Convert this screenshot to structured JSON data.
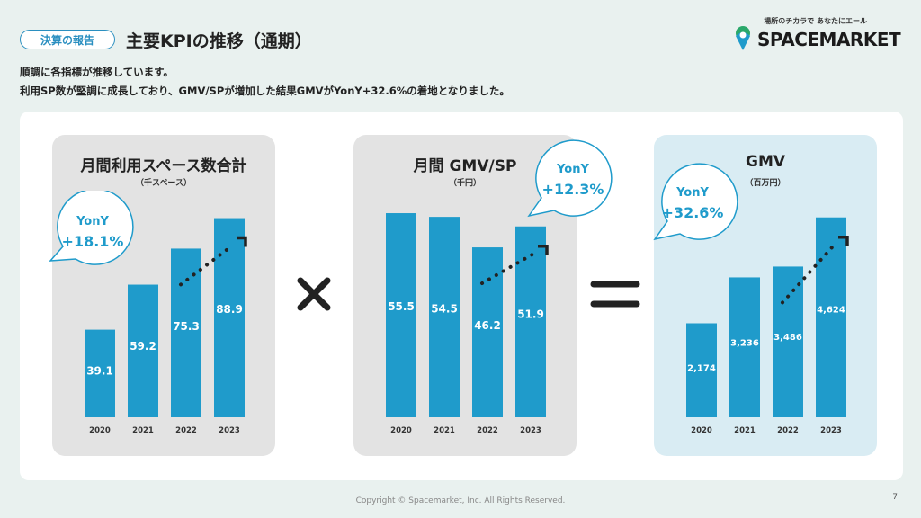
{
  "header": {
    "badge": "決算の報告",
    "title": "主要KPIの推移（通期）",
    "desc_line1": "順調に各指標が推移しています。",
    "desc_line2": "利用SP数が堅調に成長しており、GMV/SPが増加した結果GMVがYonY+32.6%の着地となりました。"
  },
  "logo": {
    "tagline": "場所のチカラで あなたにエール",
    "name": "SPACEMARKET",
    "icon": "spacemarket-logo-icon"
  },
  "operators": {
    "times": "×",
    "equals": "="
  },
  "colors": {
    "bar": "#1f9bcb",
    "accent": "#2a8fc0",
    "panel_gray": "#e3e3e3",
    "panel_blue": "#d9ecf3"
  },
  "chart_data": [
    {
      "type": "bar",
      "title": "月間利用スペース数合計",
      "unit": "（千スペース）",
      "categories": [
        "2020",
        "2021",
        "2022",
        "2023"
      ],
      "values": [
        39.1,
        59.2,
        75.3,
        88.9
      ],
      "labels": [
        "39.1",
        "59.2",
        "75.3",
        "88.9"
      ],
      "ylim": [
        0,
        110
      ],
      "yony_label": "YonY",
      "yony_value": "+18.1%",
      "grid": false
    },
    {
      "type": "bar",
      "title": "月間 GMV/SP",
      "unit": "（千円）",
      "categories": [
        "2020",
        "2021",
        "2022",
        "2023"
      ],
      "values": [
        55.5,
        54.5,
        46.2,
        51.9
      ],
      "labels": [
        "55.5",
        "54.5",
        "46.2",
        "51.9"
      ],
      "ylim": [
        0,
        67
      ],
      "yony_label": "YonY",
      "yony_value": "+12.3%",
      "grid": false
    },
    {
      "type": "bar",
      "title": "GMV",
      "unit": "（百万円）",
      "categories": [
        "2020",
        "2021",
        "2022",
        "2023"
      ],
      "values": [
        2174,
        3236,
        3486,
        4624
      ],
      "labels": [
        "2,174",
        "3,236",
        "3,486",
        "4,624"
      ],
      "ylim": [
        0,
        5700
      ],
      "yony_label": "YonY",
      "yony_value": "+32.6%",
      "grid": false
    }
  ],
  "footer": {
    "copyright": "Copyright © Spacemarket, Inc. All Rights Reserved.",
    "page": "7"
  }
}
